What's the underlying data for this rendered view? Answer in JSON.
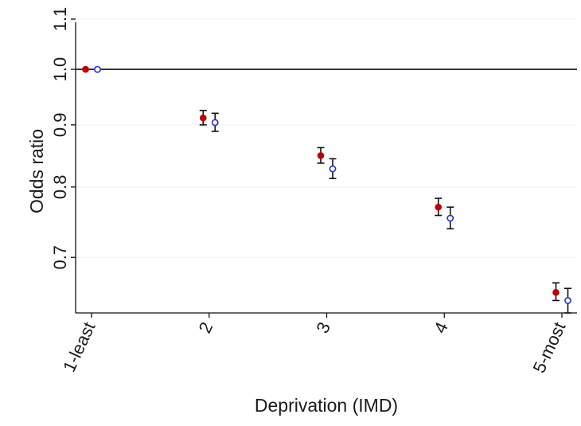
{
  "chart_data": {
    "type": "scatter",
    "title": "",
    "xlabel": "Deprivation (IMD)",
    "ylabel": "Odds ratio",
    "categories": [
      "1-least",
      "2",
      "3",
      "4",
      "5-most"
    ],
    "y_scale": "log",
    "ylim": [
      0.63,
      1.11
    ],
    "yticks": [
      {
        "value": 0.7,
        "label": "0.7"
      },
      {
        "value": 0.8,
        "label": "0.8"
      },
      {
        "value": 0.9,
        "label": "0.9"
      },
      {
        "value": 1.0,
        "label": "1.0"
      },
      {
        "value": 1.1,
        "label": "1.1"
      }
    ],
    "reference_line": 1.0,
    "grid": true,
    "series": [
      {
        "marker": "filled-circle",
        "color": "#c00000",
        "values": [
          1.0,
          0.912,
          0.849,
          0.77,
          0.655
        ],
        "ci_lower": [
          1.0,
          0.9,
          0.837,
          0.758,
          0.645
        ],
        "ci_upper": [
          1.0,
          0.925,
          0.862,
          0.783,
          0.667
        ]
      },
      {
        "marker": "hollow-circle",
        "color": "#2a2ad6",
        "values": [
          1.0,
          0.904,
          0.828,
          0.754,
          0.645
        ],
        "ci_lower": [
          1.0,
          0.889,
          0.813,
          0.739,
          0.63
        ],
        "ci_upper": [
          1.0,
          0.92,
          0.844,
          0.77,
          0.66
        ]
      }
    ]
  }
}
